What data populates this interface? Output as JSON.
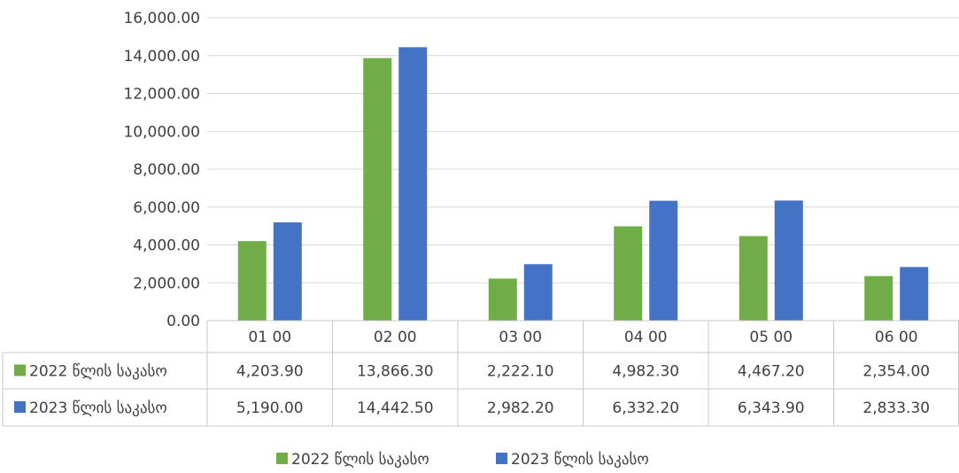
{
  "chart_data": {
    "type": "bar",
    "title": "",
    "xlabel": "",
    "ylabel": "",
    "ylim": [
      0,
      16000
    ],
    "yticks": [
      "0.00",
      "2,000.00",
      "4,000.00",
      "6,000.00",
      "8,000.00",
      "10,000.00",
      "12,000.00",
      "14,000.00",
      "16,000.00"
    ],
    "grid": true,
    "legend_position": "bottom",
    "categories": [
      "01 00",
      "02 00",
      "03 00",
      "04 00",
      "05 00",
      "06 00"
    ],
    "series": [
      {
        "name": "2022 წლის საკასო",
        "color": "#70AD47",
        "values": [
          4203.9,
          13866.3,
          2222.1,
          4982.3,
          4467.2,
          2354.0
        ],
        "labels": [
          "4,203.90",
          "13,866.30",
          "2,222.10",
          "4,982.30",
          "4,467.20",
          "2,354.00"
        ]
      },
      {
        "name": "2023 წლის საკასო",
        "color": "#4472C4",
        "values": [
          5190.0,
          14442.5,
          2982.2,
          6332.2,
          6343.9,
          2833.3
        ],
        "labels": [
          "5,190.00",
          "14,442.50",
          "2,982.20",
          "6,332.20",
          "6,343.90",
          "2,833.30"
        ]
      }
    ],
    "data_table": true
  }
}
